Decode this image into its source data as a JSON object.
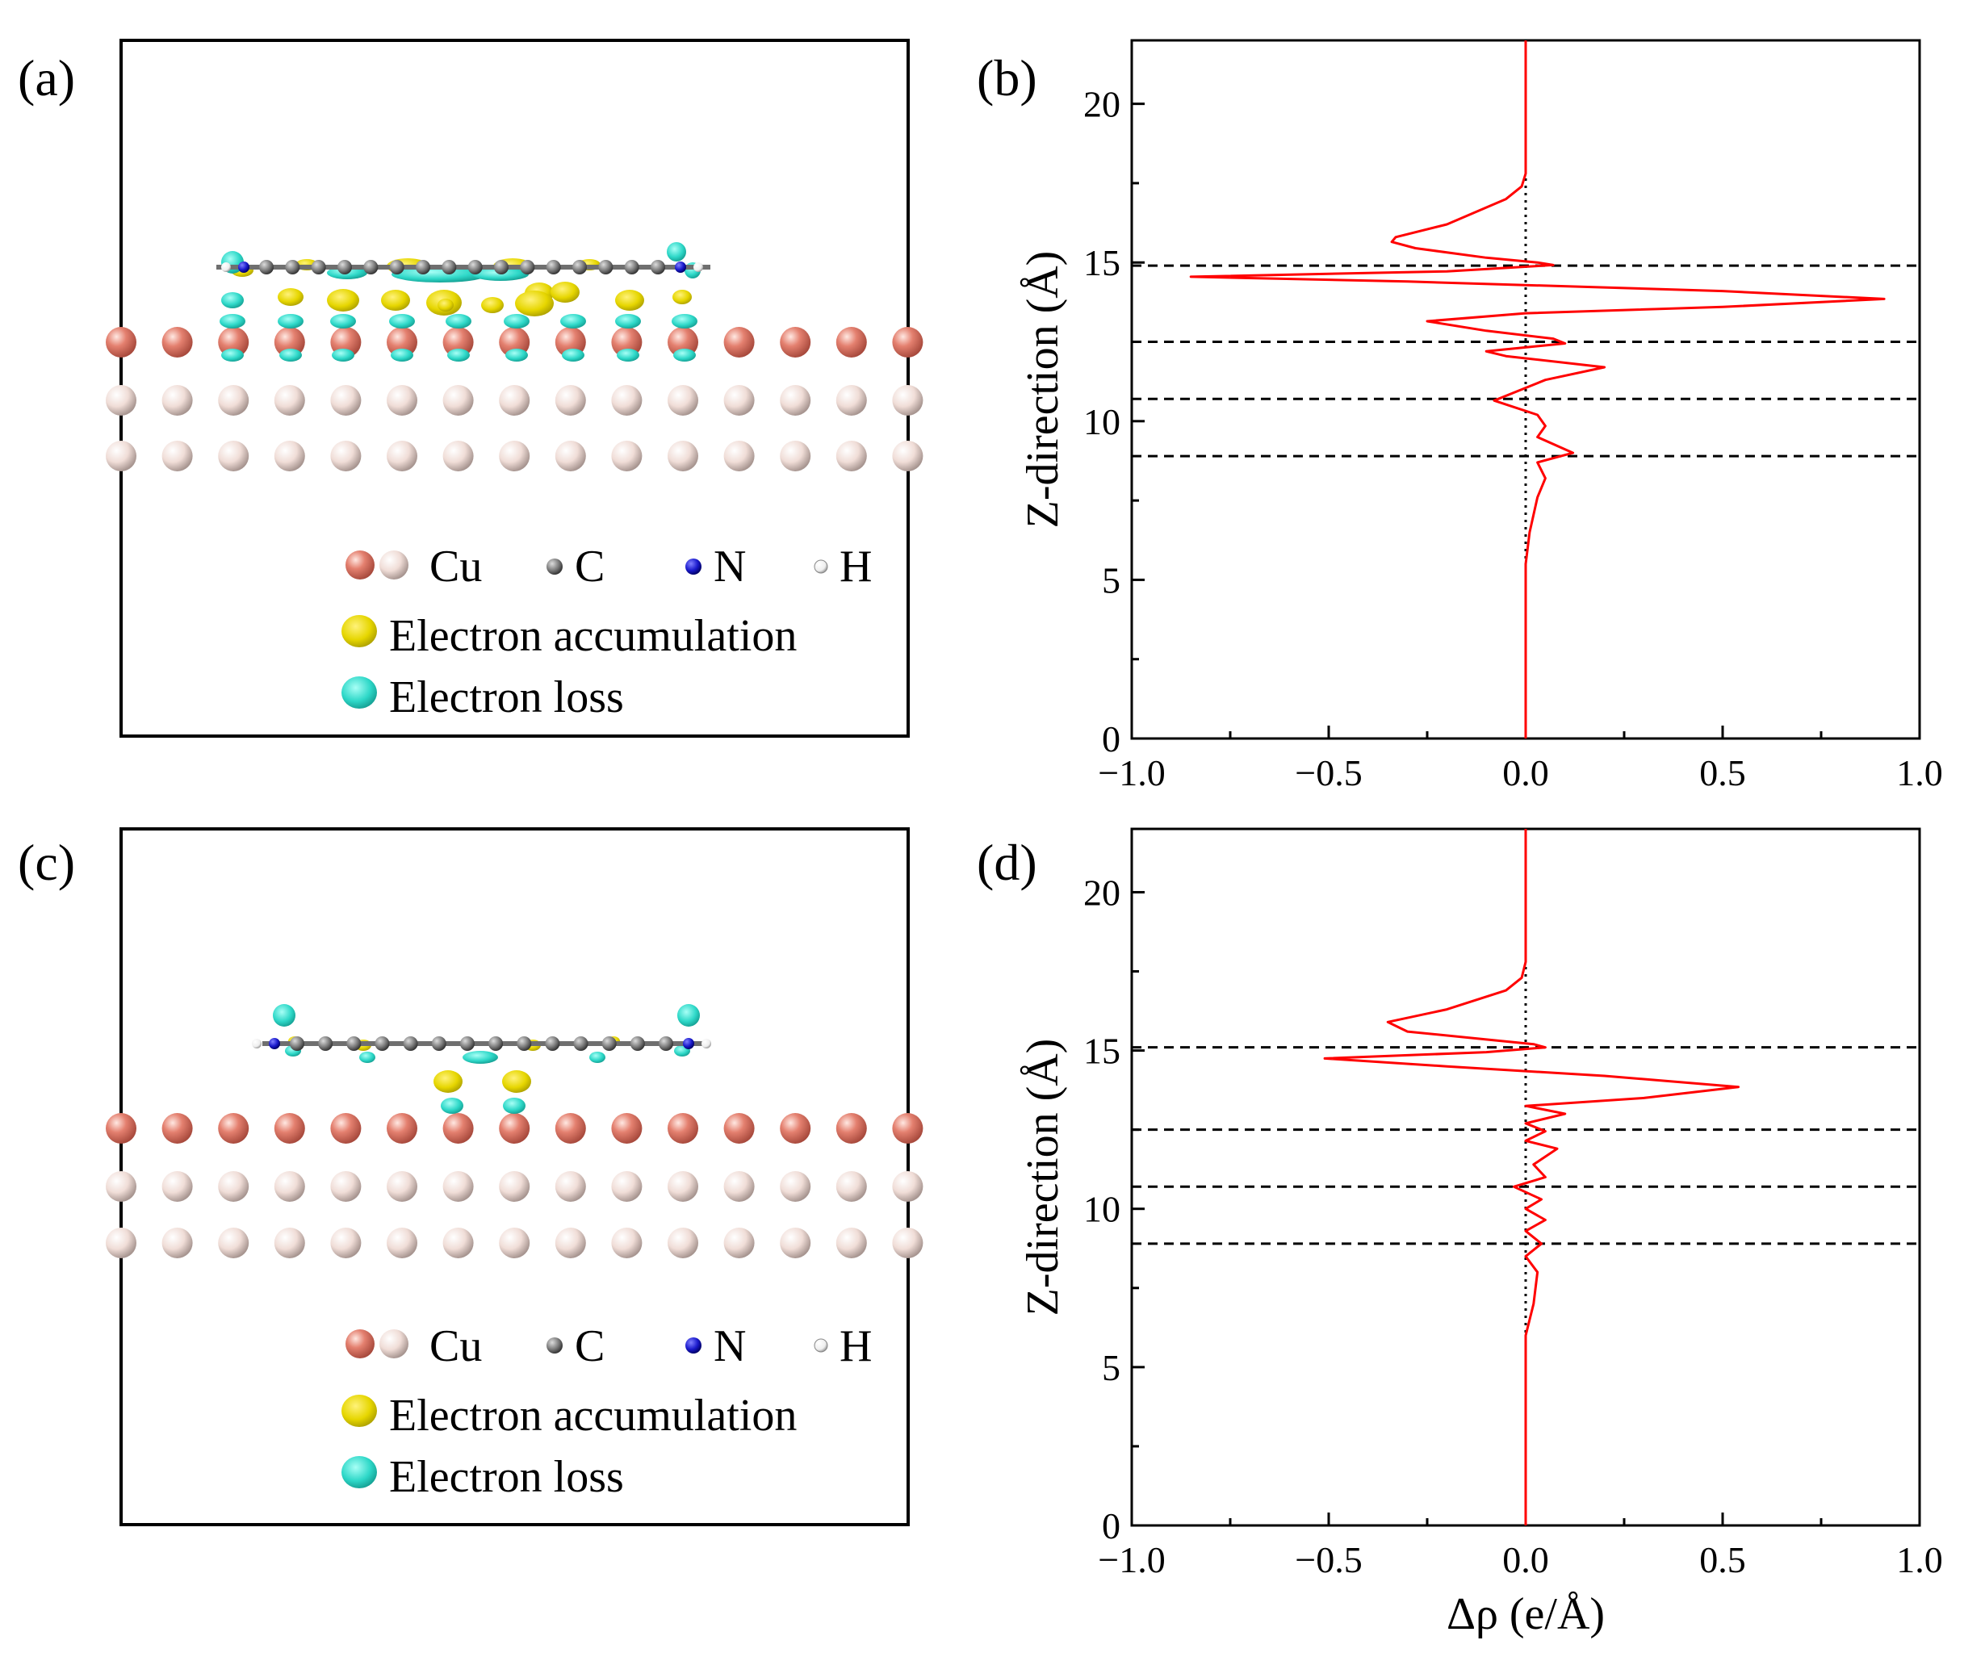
{
  "panels": {
    "a": {
      "label": "(a)"
    },
    "b": {
      "label": "(b)"
    },
    "c": {
      "label": "(c)"
    },
    "d": {
      "label": "(d)"
    }
  },
  "legend": {
    "cu": "Cu",
    "c": "C",
    "n": "N",
    "h": "H",
    "accumulation": "Electron accumulation",
    "loss": "Electron loss"
  },
  "colors": {
    "cu_top": "#e0796a",
    "cu_sub": "#efd9d3",
    "carbon": "#7f7f7f",
    "nitrogen": "#1a1acc",
    "hydrogen": "#f2f2f2",
    "accumulation": "#e6d600",
    "loss": "#2ed8c8",
    "curve": "#ff0000",
    "dashed": "#000000"
  },
  "chart_data": [
    {
      "panel": "b",
      "type": "line",
      "xlabel": "",
      "ylabel": "Z-direction (Å)",
      "xlim": [
        -1.0,
        1.0
      ],
      "ylim": [
        0,
        22
      ],
      "xticks": [
        -1.0,
        -0.5,
        0.0,
        0.5,
        1.0
      ],
      "xtick_labels": [
        "−1.0",
        "−0.5",
        "0.0",
        "0.5",
        "1.0"
      ],
      "yticks": [
        0,
        5,
        10,
        15,
        20
      ],
      "ytick_labels": [
        "0",
        "5",
        "10",
        "15",
        "20"
      ],
      "hlines": [
        14.9,
        12.5,
        10.7,
        8.9
      ],
      "vline": 0.0,
      "series": [
        {
          "name": "Δρ",
          "points": [
            [
              0.0,
              22.0
            ],
            [
              0.0,
              19.0
            ],
            [
              0.0,
              17.8
            ],
            [
              -0.01,
              17.4
            ],
            [
              -0.05,
              17.0
            ],
            [
              -0.2,
              16.2
            ],
            [
              -0.33,
              15.8
            ],
            [
              -0.34,
              15.65
            ],
            [
              -0.28,
              15.45
            ],
            [
              -0.1,
              15.15
            ],
            [
              0.03,
              15.0
            ],
            [
              0.07,
              14.92
            ],
            [
              -0.2,
              14.72
            ],
            [
              -0.85,
              14.55
            ],
            [
              -0.3,
              14.4
            ],
            [
              0.5,
              14.1
            ],
            [
              0.91,
              13.85
            ],
            [
              0.5,
              13.6
            ],
            [
              0.0,
              13.4
            ],
            [
              -0.25,
              13.15
            ],
            [
              -0.1,
              12.85
            ],
            [
              0.07,
              12.6
            ],
            [
              0.1,
              12.45
            ],
            [
              -0.1,
              12.2
            ],
            [
              -0.05,
              12.05
            ],
            [
              0.2,
              11.7
            ],
            [
              0.05,
              11.3
            ],
            [
              -0.02,
              10.95
            ],
            [
              -0.08,
              10.65
            ],
            [
              0.03,
              10.2
            ],
            [
              0.05,
              9.85
            ],
            [
              0.03,
              9.5
            ],
            [
              0.12,
              9.0
            ],
            [
              0.03,
              8.7
            ],
            [
              0.05,
              8.2
            ],
            [
              0.03,
              7.6
            ],
            [
              0.01,
              6.5
            ],
            [
              0.0,
              5.5
            ],
            [
              0.0,
              0.0
            ]
          ]
        }
      ]
    },
    {
      "panel": "d",
      "type": "line",
      "xlabel": "Δρ (e/Å)",
      "ylabel": "Z-direction (Å)",
      "xlim": [
        -1.0,
        1.0
      ],
      "ylim": [
        0,
        22
      ],
      "xticks": [
        -1.0,
        -0.5,
        0.0,
        0.5,
        1.0
      ],
      "xtick_labels": [
        "−1.0",
        "−0.5",
        "0.0",
        "0.5",
        "1.0"
      ],
      "yticks": [
        0,
        5,
        10,
        15,
        20
      ],
      "ytick_labels": [
        "0",
        "5",
        "10",
        "15",
        "20"
      ],
      "hlines": [
        15.1,
        12.5,
        10.7,
        8.9
      ],
      "vline": 0.0,
      "series": [
        {
          "name": "Δρ",
          "points": [
            [
              0.0,
              22.0
            ],
            [
              0.0,
              19.0
            ],
            [
              0.0,
              17.8
            ],
            [
              -0.01,
              17.3
            ],
            [
              -0.05,
              16.9
            ],
            [
              -0.2,
              16.3
            ],
            [
              -0.35,
              15.9
            ],
            [
              -0.3,
              15.6
            ],
            [
              -0.1,
              15.35
            ],
            [
              0.02,
              15.2
            ],
            [
              0.05,
              15.1
            ],
            [
              -0.1,
              14.95
            ],
            [
              -0.51,
              14.75
            ],
            [
              -0.2,
              14.5
            ],
            [
              0.2,
              14.2
            ],
            [
              0.54,
              13.85
            ],
            [
              0.3,
              13.5
            ],
            [
              0.0,
              13.25
            ],
            [
              0.1,
              13.0
            ],
            [
              0.0,
              12.7
            ],
            [
              0.05,
              12.45
            ],
            [
              0.0,
              12.15
            ],
            [
              0.08,
              11.9
            ],
            [
              0.02,
              11.4
            ],
            [
              0.05,
              11.0
            ],
            [
              -0.03,
              10.7
            ],
            [
              0.04,
              10.3
            ],
            [
              0.0,
              10.0
            ],
            [
              0.05,
              9.65
            ],
            [
              0.0,
              9.3
            ],
            [
              0.04,
              8.9
            ],
            [
              0.0,
              8.5
            ],
            [
              0.03,
              8.0
            ],
            [
              0.02,
              7.0
            ],
            [
              0.0,
              6.0
            ],
            [
              0.0,
              0.0
            ]
          ]
        }
      ]
    }
  ]
}
